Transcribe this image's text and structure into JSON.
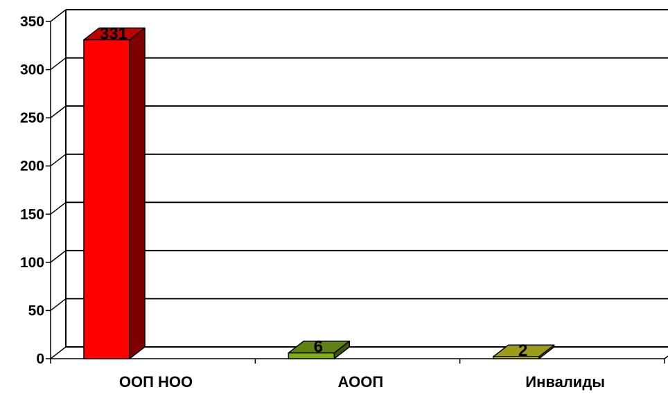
{
  "chart_data": {
    "type": "bar",
    "style": "3d-column",
    "title": "",
    "xlabel": "",
    "ylabel": "",
    "categories": [
      "ООП НОО",
      "АООП",
      "Инвалиды"
    ],
    "values": [
      331,
      6,
      2
    ],
    "data_labels": [
      "331",
      "6",
      "2"
    ],
    "ylim": [
      0,
      350
    ],
    "yticks": [
      0,
      50,
      100,
      150,
      200,
      250,
      300,
      350
    ],
    "ytick_labels": [
      "0",
      "50",
      "100",
      "150",
      "200",
      "250",
      "300",
      "350"
    ],
    "grid": true,
    "legend": "none",
    "colors": {
      "bar_fronts": [
        "#ff0000",
        "#80ae13",
        "#c7c81d"
      ],
      "bar_sides": [
        "#7f0000",
        "#40570a",
        "#63640e"
      ],
      "bar_tops": [
        "#c00000",
        "#608210",
        "#9b9c17"
      ],
      "gridline": "#000000",
      "axis": "#000000"
    }
  }
}
